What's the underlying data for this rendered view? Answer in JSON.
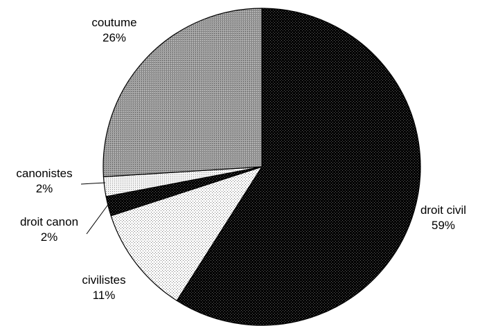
{
  "chart_data": {
    "type": "pie",
    "title": "",
    "start_angle_deg": 0,
    "direction": "clockwise",
    "slices": [
      {
        "label": "droit civil",
        "pct_label": "59%",
        "value": 59,
        "fill": "#000000",
        "pattern": "dark-dots"
      },
      {
        "label": "civilistes",
        "pct_label": "11%",
        "value": 11,
        "fill": "#ffffff",
        "pattern": "light-dots"
      },
      {
        "label": "droit canon",
        "pct_label": "2%",
        "value": 2,
        "fill": "#1a1a1a",
        "pattern": "dark-dots"
      },
      {
        "label": "canonistes",
        "pct_label": "2%",
        "value": 2,
        "fill": "#f2f2f2",
        "pattern": "fine-dots"
      },
      {
        "label": "coutume",
        "pct_label": "26%",
        "value": 26,
        "fill": "#8c8c8c",
        "pattern": "grey-dots"
      }
    ]
  }
}
